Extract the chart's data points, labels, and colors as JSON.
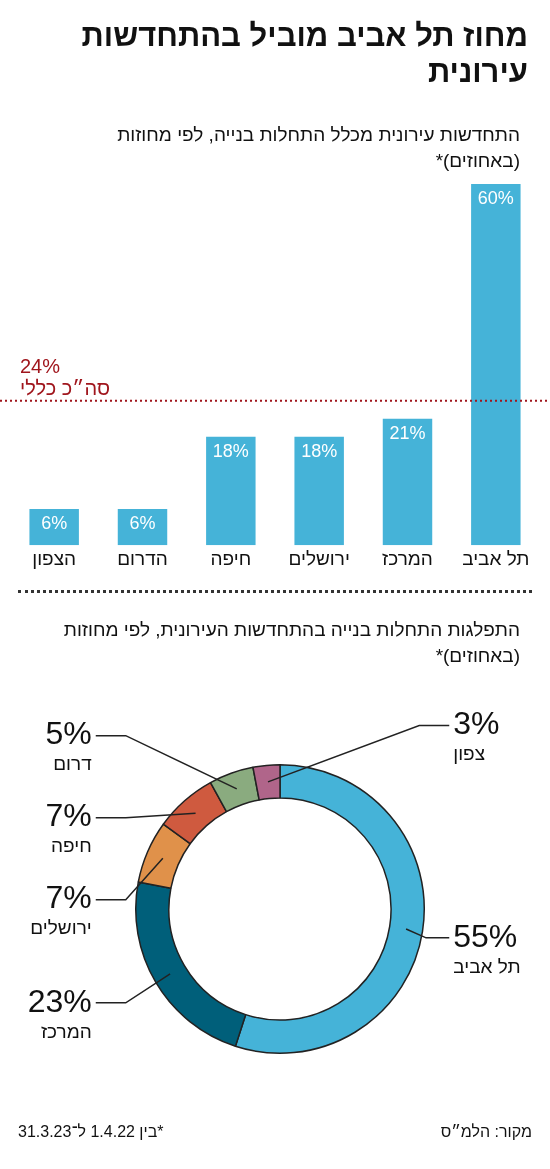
{
  "chart_data": [
    {
      "type": "bar",
      "title": "מחוז תל אביב מוביל בהתחדשות עירונית",
      "subtitle": "התחדשות עירונית מכלל התחלות בנייה, לפי מחוזות (באחוזים)*",
      "categories": [
        "הצפון",
        "הדרום",
        "חיפה",
        "ירושלים",
        "המרכז",
        "תל אביב"
      ],
      "values": [
        6,
        6,
        18,
        18,
        21,
        60
      ],
      "value_labels": [
        "6%",
        "6%",
        "18%",
        "18%",
        "21%",
        "60%"
      ],
      "color": "#45b3d8",
      "ref_lines": [
        {
          "axis": "y",
          "value": 24,
          "label": "24%\nסה״כ כללי",
          "color": "#a0161d",
          "line_style": "dotted"
        }
      ],
      "grid": false,
      "legend": false,
      "tick_labels": "x"
    },
    {
      "type": "donut",
      "title": "התפלגות התחלות בנייה בהתחדשות העירונית, לפי מחוזות (באחוזים)*",
      "categories": [
        "תל אביב",
        "המרכז",
        "ירושלים",
        "חיפה",
        "דרום",
        "צפון"
      ],
      "values": [
        55,
        23,
        7,
        7,
        5,
        3
      ],
      "value_labels": [
        "55%",
        "23%",
        "7%",
        "7%",
        "5%",
        "3%"
      ],
      "colors": [
        "#45b3d8",
        "#005f7a",
        "#e0914a",
        "#cf5a3f",
        "#8aab7f",
        "#b0658a"
      ],
      "legend": false,
      "annotations": [
        "*בין 1.4.22 ל־31.3.23",
        "מקור: הלמ״ס"
      ]
    }
  ]
}
